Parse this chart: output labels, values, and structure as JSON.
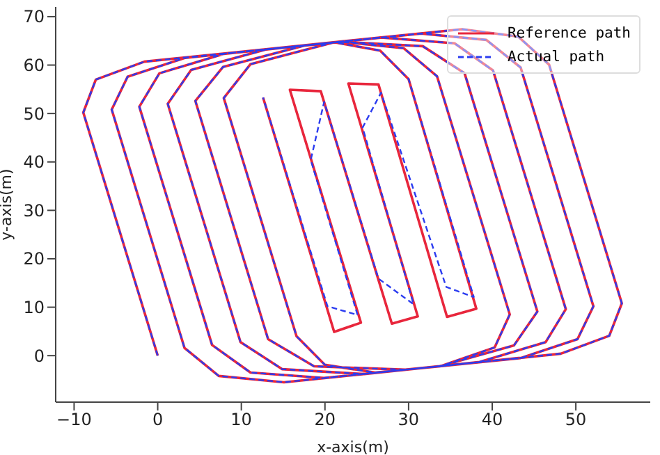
{
  "chart_data": {
    "type": "line",
    "xlabel": "x-axis(m)",
    "ylabel": "y-axis(m)",
    "xlim": [
      -12.2,
      58.9
    ],
    "ylim": [
      -9.6,
      72
    ],
    "xticks": [
      -10,
      0,
      10,
      20,
      30,
      40,
      50
    ],
    "yticks": [
      0,
      10,
      20,
      30,
      40,
      50,
      60,
      70
    ],
    "grid": false,
    "legend": "top right",
    "series": [
      {
        "name": "Reference path",
        "color": "#e8263c",
        "line_style": "solid",
        "x": [
          0,
          -8.9,
          -7.4,
          -1.6,
          36.4,
          43.1,
          46.8,
          55.5,
          54,
          48.2,
          15.1,
          7.3,
          3.2,
          -5.5,
          -3.6,
          3.3,
          31.5,
          39.3,
          43.4,
          52.1,
          50.2,
          43.4,
          19.9,
          11.1,
          6.5,
          -2.2,
          0.2,
          8.1,
          26.7,
          35.5,
          40.1,
          48.8,
          46.4,
          38.5,
          24.7,
          14.9,
          9.9,
          1.2,
          4,
          12.9,
          21.9,
          31.7,
          36.7,
          45.4,
          42.6,
          33.7,
          29.6,
          18.7,
          13.2,
          4.5,
          7.8,
          17.7,
          22,
          29.4,
          33.4,
          42.1,
          40.3,
          33.8,
          26,
          20,
          16.6,
          7.9,
          11.1,
          21.1,
          26.6,
          30,
          38.1,
          34.6,
          26.4,
          22.8,
          31.1,
          28,
          19.5,
          15.8,
          24.3,
          21.1,
          12.6
        ],
        "values": [
          0,
          50.2,
          57,
          60.7,
          67.4,
          65.9,
          60.1,
          10.8,
          4.1,
          0.4,
          -5.5,
          -4.2,
          1.6,
          50.8,
          57.6,
          61.5,
          66.5,
          65.2,
          59.5,
          10.2,
          3.4,
          -0.5,
          -4.6,
          -3.5,
          2.2,
          51.4,
          58.3,
          62.4,
          65.7,
          64.5,
          58.9,
          9.6,
          2.8,
          -1.3,
          -3.8,
          -2.8,
          2.8,
          52,
          59,
          63.2,
          64.8,
          63.9,
          58.3,
          9.1,
          2.1,
          -2.2,
          -2.9,
          -2.2,
          3.4,
          52.6,
          59.6,
          64.1,
          64.8,
          63.5,
          57.7,
          8.5,
          1.7,
          -2.2,
          -3.5,
          -1.9,
          4,
          53.2,
          60.2,
          64.7,
          63,
          57.1,
          9.7,
          8,
          56,
          56.2,
          8.1,
          6.6,
          54.6,
          54.9,
          6.8,
          4.9,
          53.3
        ]
      },
      {
        "name": "Actual path",
        "color": "#2b3cf0",
        "line_style": "dashed",
        "x": [
          0,
          -8.9,
          -7.4,
          -1.6,
          36.4,
          43.1,
          46.8,
          55.5,
          54,
          48.2,
          15.1,
          7.3,
          3.2,
          -5.5,
          -3.6,
          3.3,
          31.5,
          39.3,
          43.4,
          52.1,
          50.2,
          43.4,
          19.9,
          11.1,
          6.5,
          -2.2,
          0.2,
          8.1,
          26.7,
          35.5,
          40.1,
          48.8,
          46.4,
          38.5,
          24.7,
          14.9,
          9.9,
          1.2,
          4,
          12.9,
          21.9,
          31.7,
          36.7,
          45.4,
          42.6,
          33.7,
          29.6,
          18.7,
          13.2,
          4.5,
          7.8,
          17.7,
          22,
          29.4,
          33.4,
          42.1,
          40.3,
          33.8,
          26,
          20,
          16.6,
          7.9,
          11.1,
          21.1,
          26.6,
          30,
          37.8,
          34.5,
          26.7,
          24.5,
          30.6,
          26.4,
          19.9,
          18.3,
          23.9,
          20.3,
          12.6
        ],
        "values": [
          0,
          50.2,
          57,
          60.7,
          67.4,
          65.9,
          60.1,
          10.8,
          4.1,
          0.4,
          -5.5,
          -4.2,
          1.6,
          50.8,
          57.6,
          61.5,
          66.5,
          65.2,
          59.5,
          10.2,
          3.4,
          -0.5,
          -4.6,
          -3.5,
          2.2,
          51.4,
          58.3,
          62.4,
          65.7,
          64.5,
          58.9,
          9.6,
          2.8,
          -1.3,
          -3.8,
          -2.8,
          2.8,
          52,
          59,
          63.2,
          64.8,
          63.9,
          58.3,
          9.1,
          2.1,
          -2.2,
          -2.9,
          -2.2,
          3.4,
          52.6,
          59.6,
          64.1,
          64.8,
          63.5,
          57.7,
          8.5,
          1.7,
          -2.2,
          -3.5,
          -1.9,
          4,
          53.2,
          60.2,
          64.7,
          63,
          57.1,
          12.1,
          14.2,
          54.3,
          47.1,
          10.6,
          15.9,
          52.4,
          40.4,
          8.4,
          10.2,
          53.3
        ]
      }
    ]
  }
}
